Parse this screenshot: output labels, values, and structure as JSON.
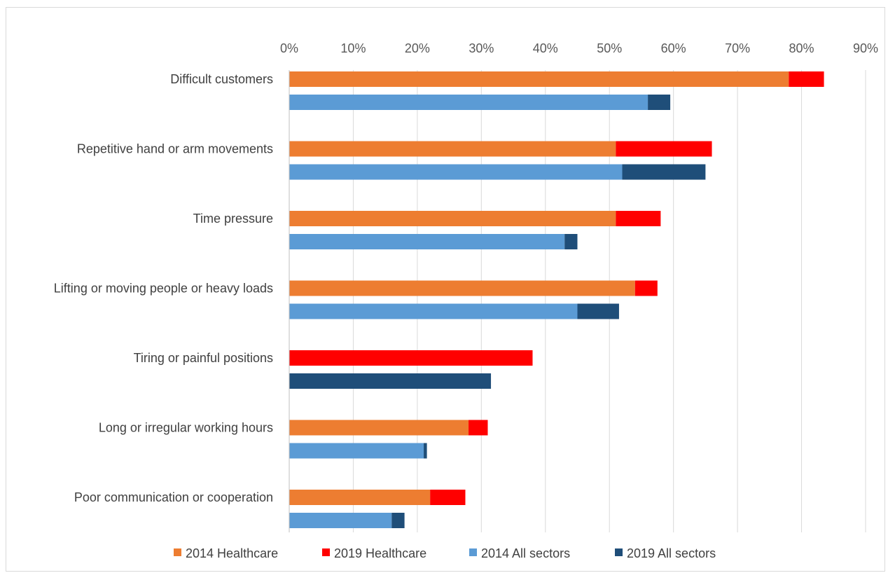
{
  "chart_data": {
    "type": "bar",
    "orientation": "horizontal",
    "stacked": true,
    "xlim": [
      0,
      90
    ],
    "xticks": [
      "0%",
      "10%",
      "20%",
      "30%",
      "40%",
      "50%",
      "60%",
      "70%",
      "80%",
      "90%"
    ],
    "grid": true,
    "legend_position": "bottom",
    "categories": [
      "Difficult customers",
      "Repetitive hand or arm movements",
      "Time pressure",
      "Lifting or moving people or heavy loads",
      "Tiring or painful positions",
      "Long or irregular working hours",
      "Poor communication or cooperation"
    ],
    "groups": [
      {
        "name": "Healthcare",
        "segments": [
          {
            "name": "2014 Healthcare",
            "color": "#ED7D31",
            "values": [
              78,
              51,
              51,
              54,
              0,
              28,
              22
            ]
          },
          {
            "name": "2019 Healthcare",
            "color": "#FF0000",
            "values": [
              83.5,
              66,
              58,
              57.5,
              38,
              31,
              27.5
            ]
          }
        ]
      },
      {
        "name": "All sectors",
        "segments": [
          {
            "name": "2014 All sectors",
            "color": "#5B9BD5",
            "values": [
              56,
              52,
              43,
              45,
              0,
              21,
              16
            ]
          },
          {
            "name": "2019 All sectors",
            "color": "#1F4E79",
            "values": [
              59.5,
              65,
              45,
              51.5,
              31.5,
              21.5,
              18
            ]
          }
        ]
      }
    ],
    "legend": [
      {
        "label": "2014 Healthcare",
        "color": "#ED7D31"
      },
      {
        "label": "2019 Healthcare",
        "color": "#FF0000"
      },
      {
        "label": "2014 All sectors",
        "color": "#5B9BD5"
      },
      {
        "label": "2019 All sectors",
        "color": "#1F4E79"
      }
    ]
  }
}
